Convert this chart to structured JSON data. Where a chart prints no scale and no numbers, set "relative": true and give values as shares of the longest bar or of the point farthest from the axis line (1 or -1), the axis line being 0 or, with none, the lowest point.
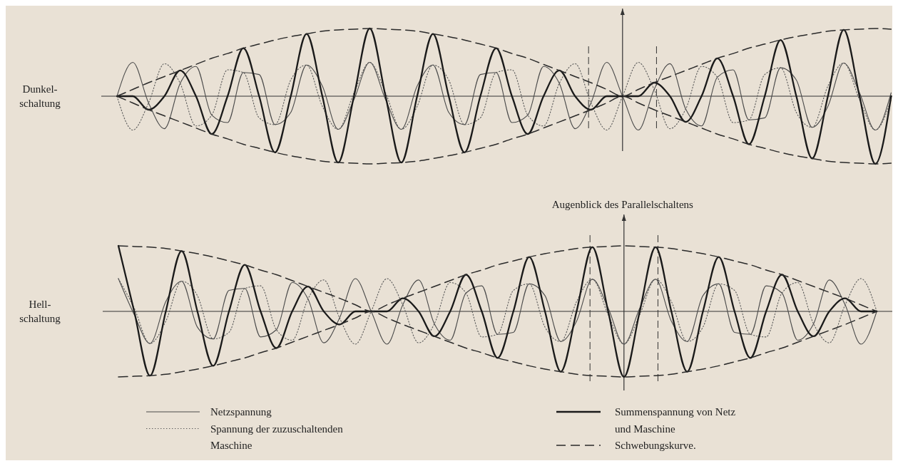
{
  "chart_data": [
    {
      "type": "line",
      "relative": true,
      "ylabel": "Dunkel-\nschaltung",
      "annotations": [
        "Augenblick des Parallelschaltens"
      ],
      "categories": [
        null,
        null,
        null,
        null,
        null,
        null,
        null,
        null,
        null,
        null,
        null,
        null,
        null,
        null,
        null,
        null,
        null,
        null,
        null,
        null,
        null,
        null,
        null,
        null,
        null,
        null,
        null,
        null,
        null,
        null,
        null,
        null,
        null,
        null,
        null,
        null,
        null,
        null,
        null,
        null,
        null,
        null,
        null,
        null,
        null,
        null,
        null,
        null,
        null,
        null
      ],
      "series": [
        {
          "color": "#4a4a4a",
          "line_style": "solid",
          "values": [
            0,
            0.5,
            -0.1,
            -0.48,
            0.19,
            0.44,
            -0.28,
            -0.39,
            0.35,
            0.32,
            -0.42,
            -0.24,
            0.46,
            0.15,
            -0.49,
            -0.05,
            0.5,
            -0.05,
            -0.49,
            0.15,
            0.46,
            -0.24,
            -0.42,
            0.32,
            0.35,
            -0.39,
            -0.28,
            0.44,
            0.19,
            -0.48,
            -0.1,
            0.5,
            0,
            -0.5,
            0.1,
            0.48,
            -0.19,
            -0.44,
            0.28,
            0.39,
            -0.35,
            -0.32,
            0.42,
            0.24,
            -0.46,
            -0.15,
            0.49,
            0.05,
            -0.5,
            0.05
          ]
        },
        {
          "color": "#5a5a5a",
          "line_style": "dotted",
          "values": [
            0,
            -0.5,
            -0.1,
            0.48,
            0.19,
            -0.44,
            -0.28,
            0.39,
            0.35,
            -0.32,
            -0.42,
            0.24,
            0.46,
            -0.15,
            -0.49,
            0.05,
            0.5,
            0.05,
            -0.49,
            -0.15,
            0.46,
            0.24,
            -0.42,
            -0.32,
            0.35,
            0.39,
            -0.28,
            -0.44,
            0.19,
            0.48,
            -0.1,
            -0.5,
            0,
            0.5,
            0.1,
            -0.48,
            -0.19,
            0.44,
            0.28,
            -0.39,
            -0.35,
            0.32,
            0.42,
            -0.24,
            -0.46,
            0.15,
            0.49,
            -0.05,
            -0.5,
            -0.05
          ]
        },
        {
          "color": "#1a1a1a",
          "line_style": "solid",
          "values": [
            0,
            0,
            -0.2,
            0,
            0.38,
            0,
            -0.56,
            0,
            0.71,
            0,
            -0.83,
            0,
            0.92,
            0,
            -0.98,
            0,
            1,
            0,
            -0.98,
            0,
            0.92,
            0,
            -0.83,
            0,
            0.71,
            0,
            -0.56,
            0,
            0.38,
            0,
            -0.2,
            0,
            0,
            0,
            0.2,
            0,
            -0.38,
            0,
            0.56,
            0,
            -0.71,
            0,
            0.83,
            0,
            -0.92,
            0,
            0.98,
            0,
            -1,
            0
          ]
        },
        {
          "color": "#2a2a2a",
          "line_style": "dashed",
          "values": [
            0,
            0.1,
            0.2,
            0.29,
            0.38,
            0.47,
            0.56,
            0.63,
            0.71,
            0.77,
            0.83,
            0.88,
            0.92,
            0.96,
            0.98,
            0.99,
            1,
            0.99,
            0.98,
            0.96,
            0.92,
            0.88,
            0.83,
            0.77,
            0.71,
            0.63,
            0.56,
            0.47,
            0.38,
            0.29,
            0.2,
            0.1,
            0,
            0.1,
            0.2,
            0.29,
            0.38,
            0.47,
            0.56,
            0.63,
            0.71,
            0.77,
            0.83,
            0.88,
            0.92,
            0.96,
            0.98,
            0.99,
            1,
            0.99
          ]
        },
        {
          "color": "#2a2a2a",
          "line_style": "dashed",
          "values": [
            0,
            -0.1,
            -0.2,
            -0.29,
            -0.38,
            -0.47,
            -0.56,
            -0.63,
            -0.71,
            -0.77,
            -0.83,
            -0.88,
            -0.92,
            -0.96,
            -0.98,
            -0.99,
            -1,
            -0.99,
            -0.98,
            -0.96,
            -0.92,
            -0.88,
            -0.83,
            -0.77,
            -0.71,
            -0.63,
            -0.56,
            -0.47,
            -0.38,
            -0.29,
            -0.2,
            -0.1,
            0,
            -0.1,
            -0.2,
            -0.29,
            -0.38,
            -0.47,
            -0.56,
            -0.63,
            -0.71,
            -0.77,
            -0.83,
            -0.88,
            -0.92,
            -0.96,
            -0.98,
            -0.99,
            -1,
            -0.99
          ]
        }
      ]
    },
    {
      "type": "line",
      "relative": true,
      "ylabel": "Hell-\nschaltung",
      "legend": "bottom",
      "categories": [
        null,
        null,
        null,
        null,
        null,
        null,
        null,
        null,
        null,
        null,
        null,
        null,
        null,
        null,
        null,
        null,
        null,
        null,
        null,
        null,
        null,
        null,
        null,
        null,
        null,
        null,
        null,
        null,
        null,
        null,
        null,
        null,
        null,
        null,
        null,
        null,
        null,
        null,
        null,
        null,
        null,
        null,
        null,
        null,
        null,
        null,
        null,
        null,
        null
      ],
      "series": [
        {
          "name": "Netzspannung",
          "color": "#4a4a4a",
          "line_style": "solid",
          "values": [
            0.5,
            -0.05,
            -0.49,
            0.15,
            0.46,
            -0.24,
            -0.42,
            0.32,
            0.35,
            -0.39,
            -0.28,
            0.44,
            0.19,
            -0.48,
            -0.1,
            0.5,
            0,
            -0.5,
            0.1,
            0.48,
            -0.19,
            -0.44,
            0.28,
            0.39,
            -0.35,
            -0.32,
            0.42,
            0.24,
            -0.46,
            -0.15,
            0.49,
            0.05,
            -0.5,
            0.05,
            0.49,
            -0.15,
            -0.46,
            0.24,
            0.42,
            -0.32,
            -0.35,
            0.39,
            0.28,
            -0.44,
            -0.19,
            0.48,
            0.1,
            -0.5,
            0
          ]
        },
        {
          "name": "Spannung der zuzuschaltenden Maschine",
          "color": "#5a5a5a",
          "line_style": "dotted",
          "values": [
            0.5,
            0.05,
            -0.49,
            -0.15,
            0.46,
            0.24,
            -0.42,
            -0.32,
            0.35,
            0.39,
            -0.28,
            -0.44,
            0.19,
            0.48,
            -0.1,
            -0.5,
            0,
            0.5,
            0.1,
            -0.48,
            -0.19,
            0.44,
            0.28,
            -0.39,
            -0.35,
            0.32,
            0.42,
            -0.24,
            -0.46,
            0.15,
            0.49,
            -0.05,
            -0.5,
            -0.05,
            0.49,
            0.15,
            -0.46,
            -0.24,
            0.42,
            0.32,
            -0.35,
            -0.39,
            0.28,
            0.44,
            -0.19,
            -0.48,
            0.1,
            0.5,
            0
          ]
        },
        {
          "name": "Summenspannung von Netz und Maschine",
          "color": "#1a1a1a",
          "line_style": "solid",
          "values": [
            1,
            0,
            -0.98,
            0,
            0.92,
            0,
            -0.83,
            0,
            0.71,
            0,
            -0.56,
            0,
            0.38,
            0,
            -0.2,
            0,
            0,
            0,
            0.2,
            0,
            -0.38,
            0,
            0.56,
            0,
            -0.71,
            0,
            0.83,
            0,
            -0.92,
            0,
            0.98,
            0,
            -1,
            0,
            0.98,
            0,
            -0.92,
            0,
            0.83,
            0,
            -0.71,
            0,
            0.56,
            0,
            -0.38,
            0,
            0.2,
            0,
            0
          ]
        },
        {
          "name": "Schwebungskurve.",
          "color": "#2a2a2a",
          "line_style": "dashed",
          "values": [
            1,
            0.99,
            0.98,
            0.96,
            0.92,
            0.88,
            0.83,
            0.77,
            0.71,
            0.63,
            0.56,
            0.47,
            0.38,
            0.29,
            0.2,
            0.1,
            0,
            0.1,
            0.2,
            0.29,
            0.38,
            0.47,
            0.56,
            0.63,
            0.71,
            0.77,
            0.83,
            0.88,
            0.92,
            0.96,
            0.98,
            0.99,
            1,
            0.99,
            0.98,
            0.96,
            0.92,
            0.88,
            0.83,
            0.77,
            0.71,
            0.63,
            0.56,
            0.47,
            0.38,
            0.29,
            0.2,
            0.1,
            0
          ]
        },
        {
          "color": "#2a2a2a",
          "line_style": "dashed",
          "values": [
            -1,
            -0.99,
            -0.98,
            -0.96,
            -0.92,
            -0.88,
            -0.83,
            -0.77,
            -0.71,
            -0.63,
            -0.56,
            -0.47,
            -0.38,
            -0.29,
            -0.2,
            -0.1,
            0,
            -0.1,
            -0.2,
            -0.29,
            -0.38,
            -0.47,
            -0.56,
            -0.63,
            -0.71,
            -0.77,
            -0.83,
            -0.88,
            -0.92,
            -0.96,
            -0.98,
            -0.99,
            -1,
            -0.99,
            -0.98,
            -0.96,
            -0.92,
            -0.88,
            -0.83,
            -0.77,
            -0.71,
            -0.63,
            -0.56,
            -0.47,
            -0.38,
            -0.29,
            -0.2,
            -0.1,
            0
          ]
        }
      ]
    }
  ]
}
